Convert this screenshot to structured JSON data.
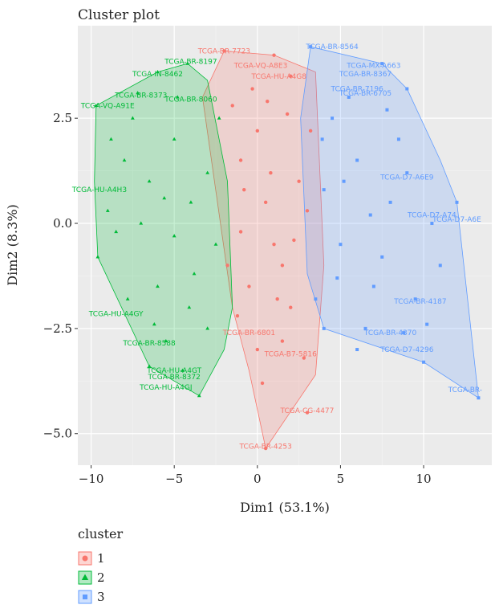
{
  "chart_data": {
    "type": "scatter",
    "title": "Cluster plot",
    "xlabel": "Dim1 (53.1%)",
    "ylabel": "Dim2 (8.3%)",
    "xlim": [
      -10.8,
      14.1
    ],
    "ylim": [
      -5.75,
      4.7
    ],
    "xticks": [
      -10,
      -5,
      0,
      5,
      10
    ],
    "xtick_labels": [
      "−10",
      "−5",
      "0",
      "5",
      "10"
    ],
    "yticks": [
      2.5,
      0.0,
      -2.5,
      -5.0
    ],
    "ytick_labels": [
      "2.5",
      "0.0",
      "−2.5",
      "−5.0"
    ],
    "grid": true,
    "legend": {
      "title": "cluster",
      "position": "bottom-left"
    },
    "colors": {
      "1": "#F8766D",
      "2": "#00BA38",
      "3": "#619CFF"
    },
    "series": [
      {
        "name": "1",
        "hull": [
          [
            -2.0,
            4.1
          ],
          [
            1.0,
            4.0
          ],
          [
            3.5,
            3.6
          ],
          [
            4.0,
            -1.0
          ],
          [
            3.5,
            -3.6
          ],
          [
            0.5,
            -5.35
          ],
          [
            -0.5,
            -3.5
          ],
          [
            -1.5,
            -2.0
          ],
          [
            -3.3,
            3.0
          ]
        ],
        "points": [
          [
            -2.0,
            4.1
          ],
          [
            1.0,
            4.0
          ],
          [
            0.5,
            -5.35
          ],
          [
            3.0,
            -4.5
          ],
          [
            0.0,
            -3.0
          ],
          [
            1.5,
            -2.8
          ],
          [
            2.0,
            3.5
          ],
          [
            -1.0,
            1.5
          ],
          [
            0.5,
            0.5
          ],
          [
            1.5,
            -1.0
          ],
          [
            -0.5,
            -1.5
          ],
          [
            2.5,
            1.0
          ],
          [
            -1.5,
            2.8
          ],
          [
            0.0,
            2.2
          ],
          [
            1.0,
            -0.5
          ],
          [
            2.0,
            -2.0
          ],
          [
            -1.0,
            -0.2
          ],
          [
            3.0,
            0.3
          ],
          [
            -0.3,
            3.2
          ],
          [
            1.8,
            2.6
          ],
          [
            0.8,
            1.2
          ],
          [
            -1.2,
            -2.2
          ],
          [
            2.8,
            -3.2
          ],
          [
            0.3,
            -3.8
          ],
          [
            3.2,
            2.2
          ],
          [
            -0.8,
            0.8
          ],
          [
            1.2,
            -1.8
          ],
          [
            2.2,
            -0.4
          ],
          [
            -1.8,
            -1.0
          ],
          [
            0.6,
            2.9
          ]
        ],
        "labels": [
          {
            "x": -2.0,
            "y": 4.1,
            "text": "TCGA-BR-7723"
          },
          {
            "x": 0.2,
            "y": 3.75,
            "text": "TCGA-VQ-A8E3"
          },
          {
            "x": 1.3,
            "y": 3.5,
            "text": "TCGA-HU-A4G8"
          },
          {
            "x": 3.0,
            "y": -4.45,
            "text": "TCGA-CG-4477"
          },
          {
            "x": 0.5,
            "y": -5.3,
            "text": "TCGA-BR-4253"
          },
          {
            "x": 2.0,
            "y": -3.1,
            "text": "TCGA-B7-5816"
          },
          {
            "x": -0.5,
            "y": -2.6,
            "text": "TCGA-BR-6801"
          }
        ]
      },
      {
        "name": "2",
        "hull": [
          [
            -9.7,
            2.8
          ],
          [
            -6.0,
            3.6
          ],
          [
            -4.2,
            3.8
          ],
          [
            -3.0,
            3.4
          ],
          [
            -1.8,
            1.0
          ],
          [
            -1.5,
            -2.0
          ],
          [
            -2.0,
            -3.0
          ],
          [
            -3.5,
            -4.1
          ],
          [
            -6.5,
            -3.4
          ],
          [
            -9.6,
            -0.8
          ],
          [
            -9.8,
            1.0
          ]
        ],
        "points": [
          [
            -9.7,
            2.8
          ],
          [
            -6.0,
            3.6
          ],
          [
            -4.2,
            3.8
          ],
          [
            -3.5,
            -4.1
          ],
          [
            -6.5,
            -3.4
          ],
          [
            -9.6,
            -0.8
          ],
          [
            -8.0,
            1.5
          ],
          [
            -7.0,
            0.0
          ],
          [
            -6.0,
            -1.5
          ],
          [
            -5.0,
            2.0
          ],
          [
            -4.0,
            0.5
          ],
          [
            -3.0,
            -2.5
          ],
          [
            -8.5,
            -0.2
          ],
          [
            -7.5,
            2.5
          ],
          [
            -5.5,
            -2.8
          ],
          [
            -4.5,
            -3.5
          ],
          [
            -3.0,
            1.2
          ],
          [
            -2.5,
            -0.5
          ],
          [
            -6.5,
            1.0
          ],
          [
            -9.0,
            0.3
          ],
          [
            -5.0,
            -0.3
          ],
          [
            -7.8,
            -1.8
          ],
          [
            -4.8,
            3.0
          ],
          [
            -2.3,
            2.5
          ],
          [
            -8.8,
            2.0
          ],
          [
            -6.2,
            -2.4
          ],
          [
            -3.8,
            -1.2
          ],
          [
            -5.6,
            0.6
          ],
          [
            -7.2,
            3.1
          ],
          [
            -4.1,
            -2.0
          ]
        ],
        "labels": [
          {
            "x": -4.0,
            "y": 3.85,
            "text": "TCGA-BR-8197"
          },
          {
            "x": -6.0,
            "y": 3.55,
            "text": "TCGA-IN-8462"
          },
          {
            "x": -9.0,
            "y": 2.8,
            "text": "TCGA-VQ-A91E"
          },
          {
            "x": -7.0,
            "y": 3.05,
            "text": "TCGA-BR-8373"
          },
          {
            "x": -4.0,
            "y": 2.95,
            "text": "TCGA-BR-8060"
          },
          {
            "x": -9.5,
            "y": 0.8,
            "text": "TCGA-HU-A4H3"
          },
          {
            "x": -8.5,
            "y": -2.15,
            "text": "TCGA-HU-A4GY"
          },
          {
            "x": -6.5,
            "y": -2.85,
            "text": "TCGA-BR-8588"
          },
          {
            "x": -5.0,
            "y": -3.5,
            "text": "TCGA-HU-A4GT"
          },
          {
            "x": -5.0,
            "y": -3.65,
            "text": "TCGA-BR-8372"
          },
          {
            "x": -5.5,
            "y": -3.9,
            "text": "TCGA-HU-A4GJ"
          }
        ]
      },
      {
        "name": "3",
        "hull": [
          [
            3.2,
            4.2
          ],
          [
            7.5,
            3.8
          ],
          [
            9.0,
            3.2
          ],
          [
            11.0,
            1.5
          ],
          [
            12.0,
            0.5
          ],
          [
            13.3,
            -4.15
          ],
          [
            10.0,
            -3.3
          ],
          [
            4.0,
            -2.5
          ],
          [
            3.0,
            -1.2
          ],
          [
            2.6,
            2.5
          ]
        ],
        "points": [
          [
            3.2,
            4.2
          ],
          [
            7.5,
            3.8
          ],
          [
            9.0,
            3.2
          ],
          [
            12.0,
            0.5
          ],
          [
            13.3,
            -4.15
          ],
          [
            10.0,
            -3.3
          ],
          [
            4.0,
            -2.5
          ],
          [
            6.0,
            1.5
          ],
          [
            8.0,
            0.5
          ],
          [
            5.0,
            -0.5
          ],
          [
            7.0,
            -1.5
          ],
          [
            9.5,
            -1.8
          ],
          [
            4.5,
            2.5
          ],
          [
            10.5,
            0.0
          ],
          [
            6.5,
            -2.5
          ],
          [
            5.5,
            3.0
          ],
          [
            8.5,
            2.0
          ],
          [
            4.0,
            0.8
          ],
          [
            7.5,
            -0.8
          ],
          [
            11.0,
            -1.0
          ],
          [
            6.0,
            -3.0
          ],
          [
            9.0,
            1.2
          ],
          [
            5.2,
            1.0
          ],
          [
            3.5,
            -1.8
          ],
          [
            7.8,
            2.7
          ],
          [
            10.2,
            -2.4
          ],
          [
            4.8,
            -1.3
          ],
          [
            6.8,
            0.2
          ],
          [
            8.8,
            -2.6
          ],
          [
            3.9,
            2.0
          ]
        ],
        "labels": [
          {
            "x": 4.5,
            "y": 4.2,
            "text": "TCGA-BR-8564"
          },
          {
            "x": 7.0,
            "y": 3.75,
            "text": "TCGA-MX-A663"
          },
          {
            "x": 6.5,
            "y": 3.55,
            "text": "TCGA-BR-8367"
          },
          {
            "x": 6.5,
            "y": 3.1,
            "text": "TCGA-BR-6705"
          },
          {
            "x": 6.0,
            "y": 3.2,
            "text": "TCGA-BR-7196"
          },
          {
            "x": 9.0,
            "y": 1.1,
            "text": "TCGA-D7-A6E9"
          },
          {
            "x": 10.5,
            "y": 0.2,
            "text": "TCGA-D7-A74"
          },
          {
            "x": 12.0,
            "y": 0.1,
            "text": "TCGA-D7-A6E"
          },
          {
            "x": 9.8,
            "y": -1.85,
            "text": "TCGA-BR-4187"
          },
          {
            "x": 8.0,
            "y": -2.6,
            "text": "TCGA-BR-4370"
          },
          {
            "x": 9.0,
            "y": -3.0,
            "text": "TCGA-D7-4296"
          },
          {
            "x": 12.5,
            "y": -3.95,
            "text": "TCGA-BR-"
          }
        ]
      }
    ]
  }
}
